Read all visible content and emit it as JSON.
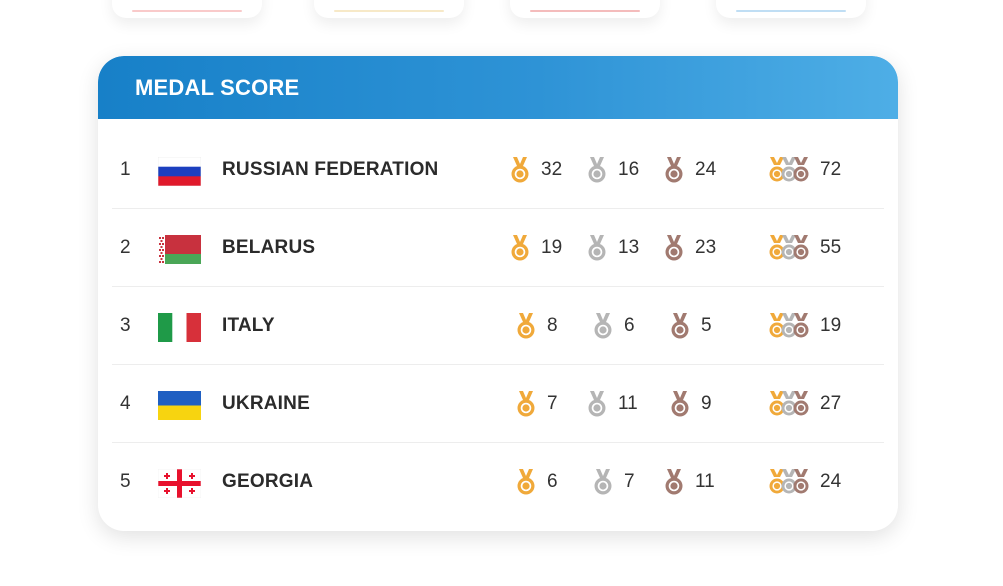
{
  "header": {
    "title": "MEDAL SCORE"
  },
  "colors": {
    "header_start": "#1780c8",
    "header_end": "#4eaee6",
    "gold": "#f0a93a",
    "silver": "#b5b5b5",
    "bronze": "#a17a70"
  },
  "icons": {
    "gold": "gold-medal-icon",
    "silver": "silver-medal-icon",
    "bronze": "bronze-medal-icon",
    "total": "total-medals-icon"
  },
  "rows": [
    {
      "rank": "1",
      "country": "RUSSIAN FEDERATION",
      "flag": "russia-flag",
      "gold": "32",
      "silver": "16",
      "bronze": "24",
      "total": "72"
    },
    {
      "rank": "2",
      "country": "BELARUS",
      "flag": "belarus-flag",
      "gold": "19",
      "silver": "13",
      "bronze": "23",
      "total": "55"
    },
    {
      "rank": "3",
      "country": "ITALY",
      "flag": "italy-flag",
      "gold": "8",
      "silver": "6",
      "bronze": "5",
      "total": "19"
    },
    {
      "rank": "4",
      "country": "UKRAINE",
      "flag": "ukraine-flag",
      "gold": "7",
      "silver": "11",
      "bronze": "9",
      "total": "27"
    },
    {
      "rank": "5",
      "country": "GEORGIA",
      "flag": "georgia-flag",
      "gold": "6",
      "silver": "7",
      "bronze": "11",
      "total": "24"
    }
  ]
}
